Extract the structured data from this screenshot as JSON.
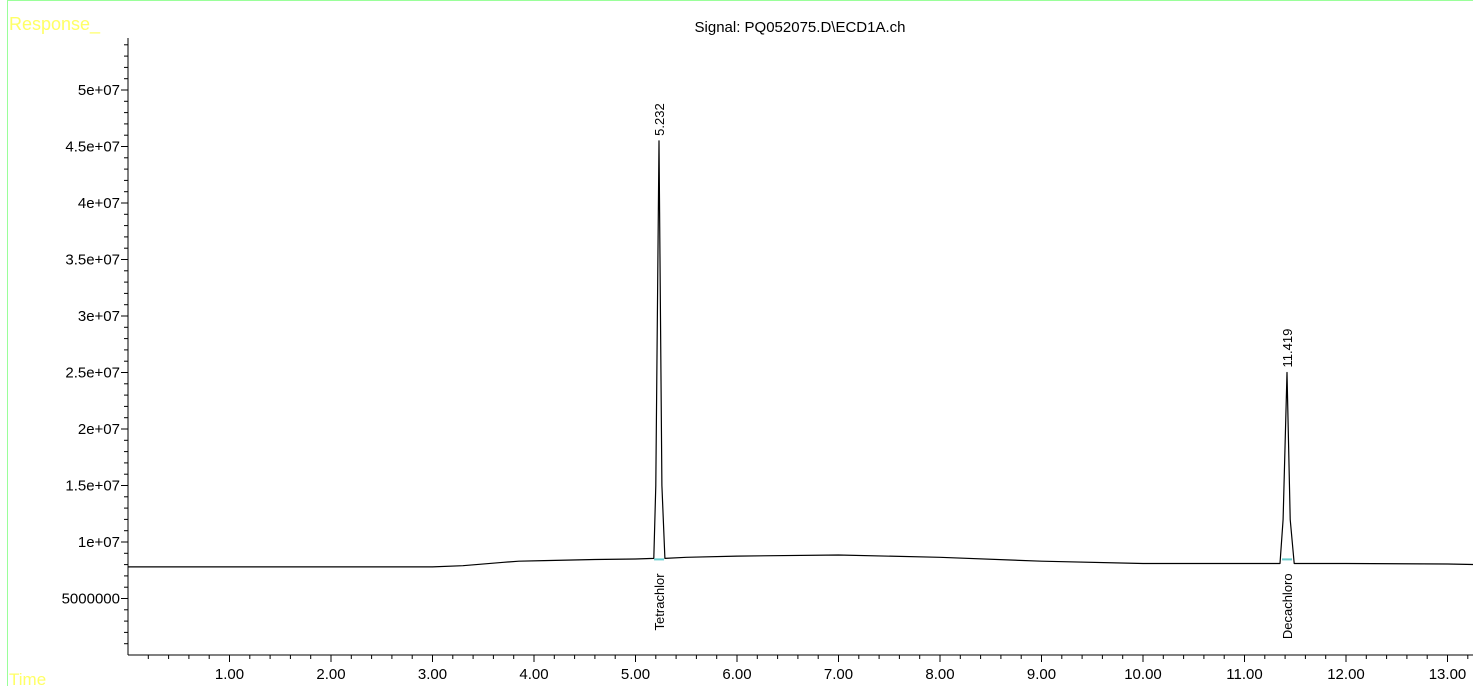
{
  "chart_data": {
    "type": "line",
    "title": "Signal: PQ052075.D\\ECD1A.ch",
    "ylabel": "Response_",
    "xlabel": "Time",
    "xlim": [
      0.0,
      13.3
    ],
    "ylim": [
      0,
      55000000
    ],
    "x_ticks": [
      1.0,
      2.0,
      3.0,
      4.0,
      5.0,
      6.0,
      7.0,
      8.0,
      9.0,
      10.0,
      11.0,
      12.0,
      13.0
    ],
    "x_tick_labels": [
      "1.00",
      "2.00",
      "3.00",
      "4.00",
      "5.00",
      "6.00",
      "7.00",
      "8.00",
      "9.00",
      "10.00",
      "11.00",
      "12.00",
      "13.00"
    ],
    "y_ticks": [
      5000000,
      10000000,
      15000000,
      20000000,
      25000000,
      30000000,
      35000000,
      40000000,
      45000000,
      50000000
    ],
    "y_tick_labels": [
      "5000000",
      "1e+07",
      "1.5e+07",
      "2e+07",
      "2.5e+07",
      "3e+07",
      "3.5e+07",
      "4e+07",
      "4.5e+07",
      "5e+07"
    ],
    "grid": false,
    "series": [
      {
        "x": [
          0.0,
          3.0,
          3.3,
          3.7,
          3.85,
          4.1,
          4.6,
          5.0,
          5.18,
          5.2,
          5.232,
          5.26,
          5.29,
          5.5,
          6.0,
          7.0,
          8.0,
          9.0,
          10.0,
          11.0,
          11.35,
          11.38,
          11.419,
          11.45,
          11.49,
          12.0,
          13.0,
          13.3
        ],
        "y": [
          7800000,
          7800000,
          7900000,
          8200000,
          8300000,
          8350000,
          8450000,
          8500000,
          8550000,
          15000000,
          45500000,
          15000000,
          8550000,
          8650000,
          8750000,
          8850000,
          8650000,
          8300000,
          8100000,
          8100000,
          8100000,
          12000000,
          25000000,
          12000000,
          8100000,
          8100000,
          8050000,
          8000000
        ]
      }
    ],
    "peaks": [
      {
        "rt": 5.232,
        "rt_label": "5.232",
        "name": "Tetrachlor",
        "height": 45500000
      },
      {
        "rt": 11.419,
        "rt_label": "11.419",
        "name": "Decachloro",
        "height": 25000000
      }
    ],
    "colors": {
      "frame": "#9aff9a",
      "axis_title": "#ffff66",
      "signal": "#000000",
      "baseline_marker": "#66cccc"
    }
  }
}
